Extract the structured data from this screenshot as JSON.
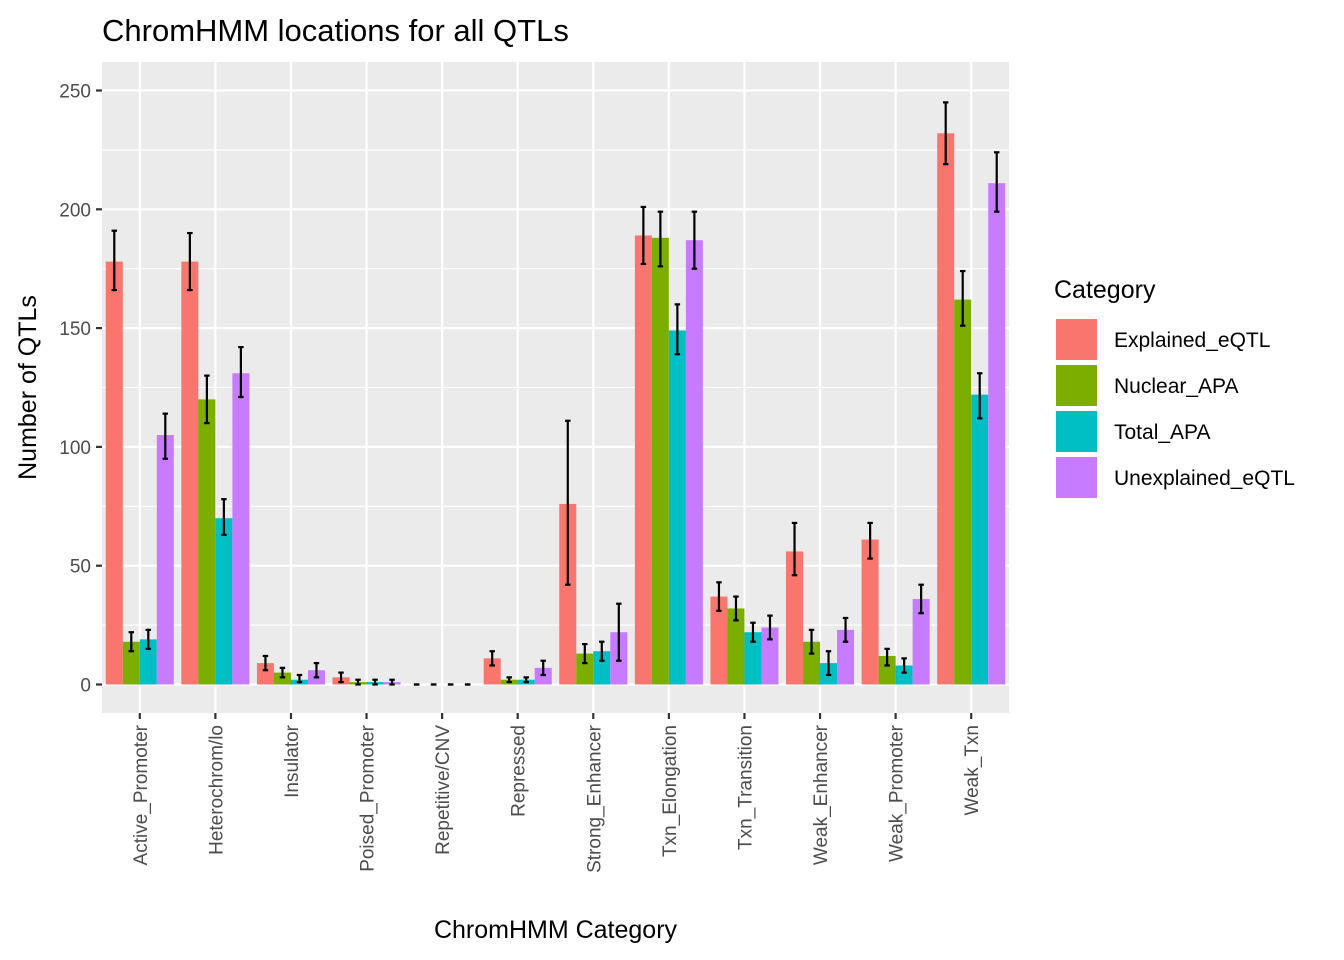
{
  "chart_data": {
    "type": "bar",
    "title": "ChromHMM locations for all QTLs",
    "xlabel": "ChromHMM Category",
    "ylabel": "Number of QTLs",
    "ylim": [
      -12,
      262
    ],
    "yticks": [
      0,
      50,
      100,
      150,
      200,
      250
    ],
    "categories": [
      "Active_Promoter",
      "Heterochrom/lo",
      "Insulator",
      "Poised_Promoter",
      "Repetitive/CNV",
      "Repressed",
      "Strong_Enhancer",
      "Txn_Elongation",
      "Txn_Transition",
      "Weak_Enhancer",
      "Weak_Promoter",
      "Weak_Txn"
    ],
    "legend": {
      "title": "Category",
      "position": "right"
    },
    "series": [
      {
        "name": "Explained_eQTL",
        "color": "#F8766D",
        "values": [
          178,
          178,
          9,
          3,
          0,
          11,
          76,
          189,
          37,
          56,
          61,
          232
        ],
        "err_low": [
          166,
          166,
          6,
          1,
          0,
          8,
          42,
          177,
          31,
          46,
          53,
          219
        ],
        "err_high": [
          191,
          190,
          12,
          5,
          0,
          14,
          111,
          201,
          43,
          68,
          68,
          245
        ]
      },
      {
        "name": "Nuclear_APA",
        "color": "#7CAE00",
        "values": [
          18,
          120,
          5,
          1,
          0,
          2,
          13,
          188,
          32,
          18,
          12,
          162
        ],
        "err_low": [
          14,
          110,
          3,
          0,
          0,
          1,
          9,
          176,
          27,
          13,
          8,
          151
        ],
        "err_high": [
          22,
          130,
          7,
          2,
          0,
          3,
          17,
          199,
          37,
          23,
          15,
          174
        ]
      },
      {
        "name": "Total_APA",
        "color": "#00BFC4",
        "values": [
          19,
          70,
          2,
          1,
          0,
          2,
          14,
          149,
          22,
          9,
          8,
          122
        ],
        "err_low": [
          15,
          63,
          1,
          0,
          0,
          1,
          10,
          139,
          18,
          4,
          5,
          112
        ],
        "err_high": [
          23,
          78,
          4,
          2,
          0,
          3,
          18,
          160,
          26,
          14,
          11,
          131
        ]
      },
      {
        "name": "Unexplained_eQTL",
        "color": "#C77CFF",
        "values": [
          105,
          131,
          6,
          1,
          0,
          7,
          22,
          187,
          24,
          23,
          36,
          211
        ],
        "err_low": [
          95,
          121,
          3,
          0,
          0,
          4,
          10,
          175,
          19,
          18,
          30,
          199
        ],
        "err_high": [
          114,
          142,
          9,
          2,
          0,
          10,
          34,
          199,
          29,
          28,
          42,
          224
        ]
      }
    ]
  }
}
